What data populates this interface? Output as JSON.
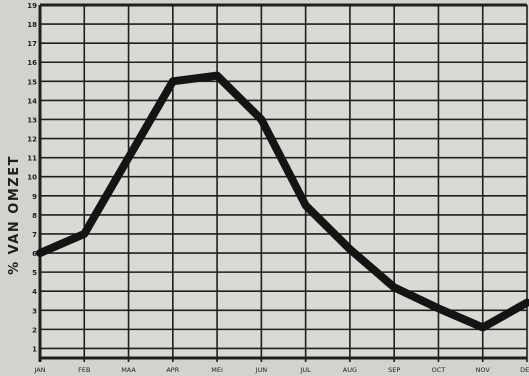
{
  "chart_data": {
    "type": "line",
    "title": "",
    "ylabel": "% VAN OMZET",
    "xlabel": "",
    "categories": [
      "JAN",
      "FEB",
      "MAA",
      "APR",
      "MEI",
      "JUN",
      "JUL",
      "AUG",
      "SEP",
      "OCT",
      "NOV",
      "DEC"
    ],
    "y_ticks": [
      1,
      2,
      3,
      4,
      5,
      6,
      7,
      8,
      9,
      10,
      11,
      12,
      13,
      14,
      15,
      16,
      17,
      18,
      19
    ],
    "ylim": [
      0.5,
      19
    ],
    "grid": true,
    "series": [
      {
        "values": [
          6,
          7,
          11,
          15,
          15.3,
          13,
          8.5,
          6.2,
          4.2,
          3.1,
          2.1,
          3.4
        ]
      }
    ]
  },
  "colors": {
    "background": "#d2d2cf",
    "plot_background": "#d9d9d6",
    "grid": "#1f1f1f",
    "line": "#141414",
    "text": "#1e1e1e"
  }
}
